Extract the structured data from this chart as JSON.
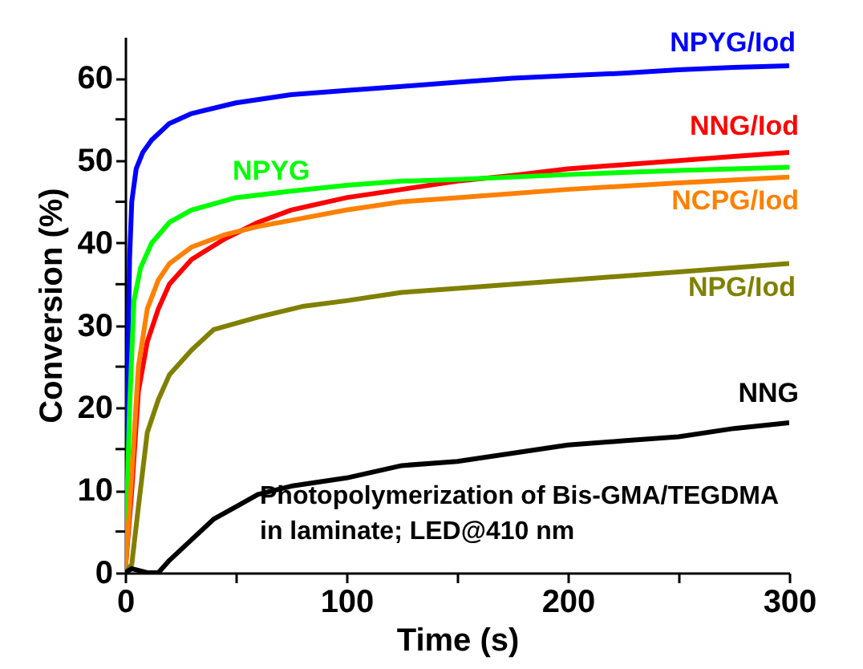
{
  "chart_data": {
    "type": "line",
    "xlabel": "Time (s)",
    "ylabel": "Conversion (%)",
    "xlim": [
      0,
      300
    ],
    "ylim": [
      0,
      65
    ],
    "xticks": [
      0,
      {
        "value": 50,
        "label": null
      },
      100,
      {
        "value": 150,
        "label": null
      },
      200,
      {
        "value": 250,
        "label": null
      },
      300
    ],
    "yticks": [
      0,
      {
        "value": 5,
        "label": null
      },
      10,
      {
        "value": 15,
        "label": null
      },
      20,
      {
        "value": 25,
        "label": null
      },
      30,
      {
        "value": 35,
        "label": null
      },
      40,
      {
        "value": 45,
        "label": null
      },
      50,
      {
        "value": 55,
        "label": null
      },
      60
    ],
    "grid": false,
    "legend": false,
    "marker": "none",
    "line_style": "solid",
    "annotations": [
      {
        "text": "Photopolymerization of Bis-GMA/TEGDMA\nin laminate; LED@410 nm"
      }
    ],
    "series": [
      {
        "name": "NPYG/Iod",
        "color": "#0000ff",
        "x": [
          0,
          1,
          2,
          3,
          5,
          8,
          12,
          20,
          30,
          50,
          75,
          100,
          125,
          150,
          175,
          200,
          225,
          250,
          275,
          300
        ],
        "values": [
          0,
          20,
          38,
          45,
          49,
          51,
          52.5,
          54.5,
          55.7,
          57,
          58,
          58.5,
          59,
          59.5,
          60,
          60.3,
          60.6,
          61,
          61.3,
          61.5
        ]
      },
      {
        "name": "NNG/Iod",
        "color": "#ff0000",
        "x": [
          0,
          3,
          6,
          10,
          15,
          20,
          30,
          45,
          60,
          75,
          100,
          125,
          150,
          175,
          200,
          250,
          275,
          300
        ],
        "values": [
          0,
          10,
          22,
          28,
          32,
          35,
          38,
          40.5,
          42.5,
          44,
          45.5,
          46.5,
          47.5,
          48.2,
          49,
          50,
          50.5,
          51
        ]
      },
      {
        "name": "NPYG",
        "color": "#00ff00",
        "x": [
          0,
          2,
          4,
          7,
          12,
          20,
          30,
          50,
          75,
          100,
          125,
          150,
          200,
          250,
          300
        ],
        "values": [
          0,
          20,
          33,
          37,
          40,
          42.5,
          44,
          45.5,
          46.3,
          47,
          47.5,
          47.7,
          48.3,
          48.8,
          49.2
        ]
      },
      {
        "name": "NCPG/Iod",
        "color": "#ff8000",
        "x": [
          0,
          3,
          6,
          10,
          15,
          20,
          30,
          45,
          60,
          80,
          100,
          125,
          150,
          200,
          250,
          300
        ],
        "values": [
          0,
          12,
          25,
          32,
          35.5,
          37.5,
          39.5,
          41,
          42,
          43,
          44,
          45,
          45.5,
          46.5,
          47.3,
          48
        ]
      },
      {
        "name": "NPG/Iod",
        "color": "#808000",
        "x": [
          0,
          3,
          6,
          10,
          15,
          20,
          30,
          40,
          60,
          80,
          100,
          125,
          150,
          200,
          250,
          300
        ],
        "values": [
          0,
          1,
          8,
          17,
          21,
          24,
          27,
          29.5,
          31,
          32.3,
          33,
          34,
          34.5,
          35.5,
          36.5,
          37.5
        ]
      },
      {
        "name": "NNG",
        "color": "#000000",
        "x": [
          0,
          3,
          10,
          15,
          20,
          30,
          40,
          50,
          60,
          75,
          100,
          125,
          150,
          175,
          200,
          225,
          250,
          275,
          300
        ],
        "values": [
          0,
          0.5,
          0,
          0,
          1.5,
          4,
          6.5,
          8,
          9.5,
          10.5,
          11.5,
          13,
          13.5,
          14.5,
          15.5,
          16,
          16.5,
          17.5,
          18.2
        ]
      }
    ]
  }
}
